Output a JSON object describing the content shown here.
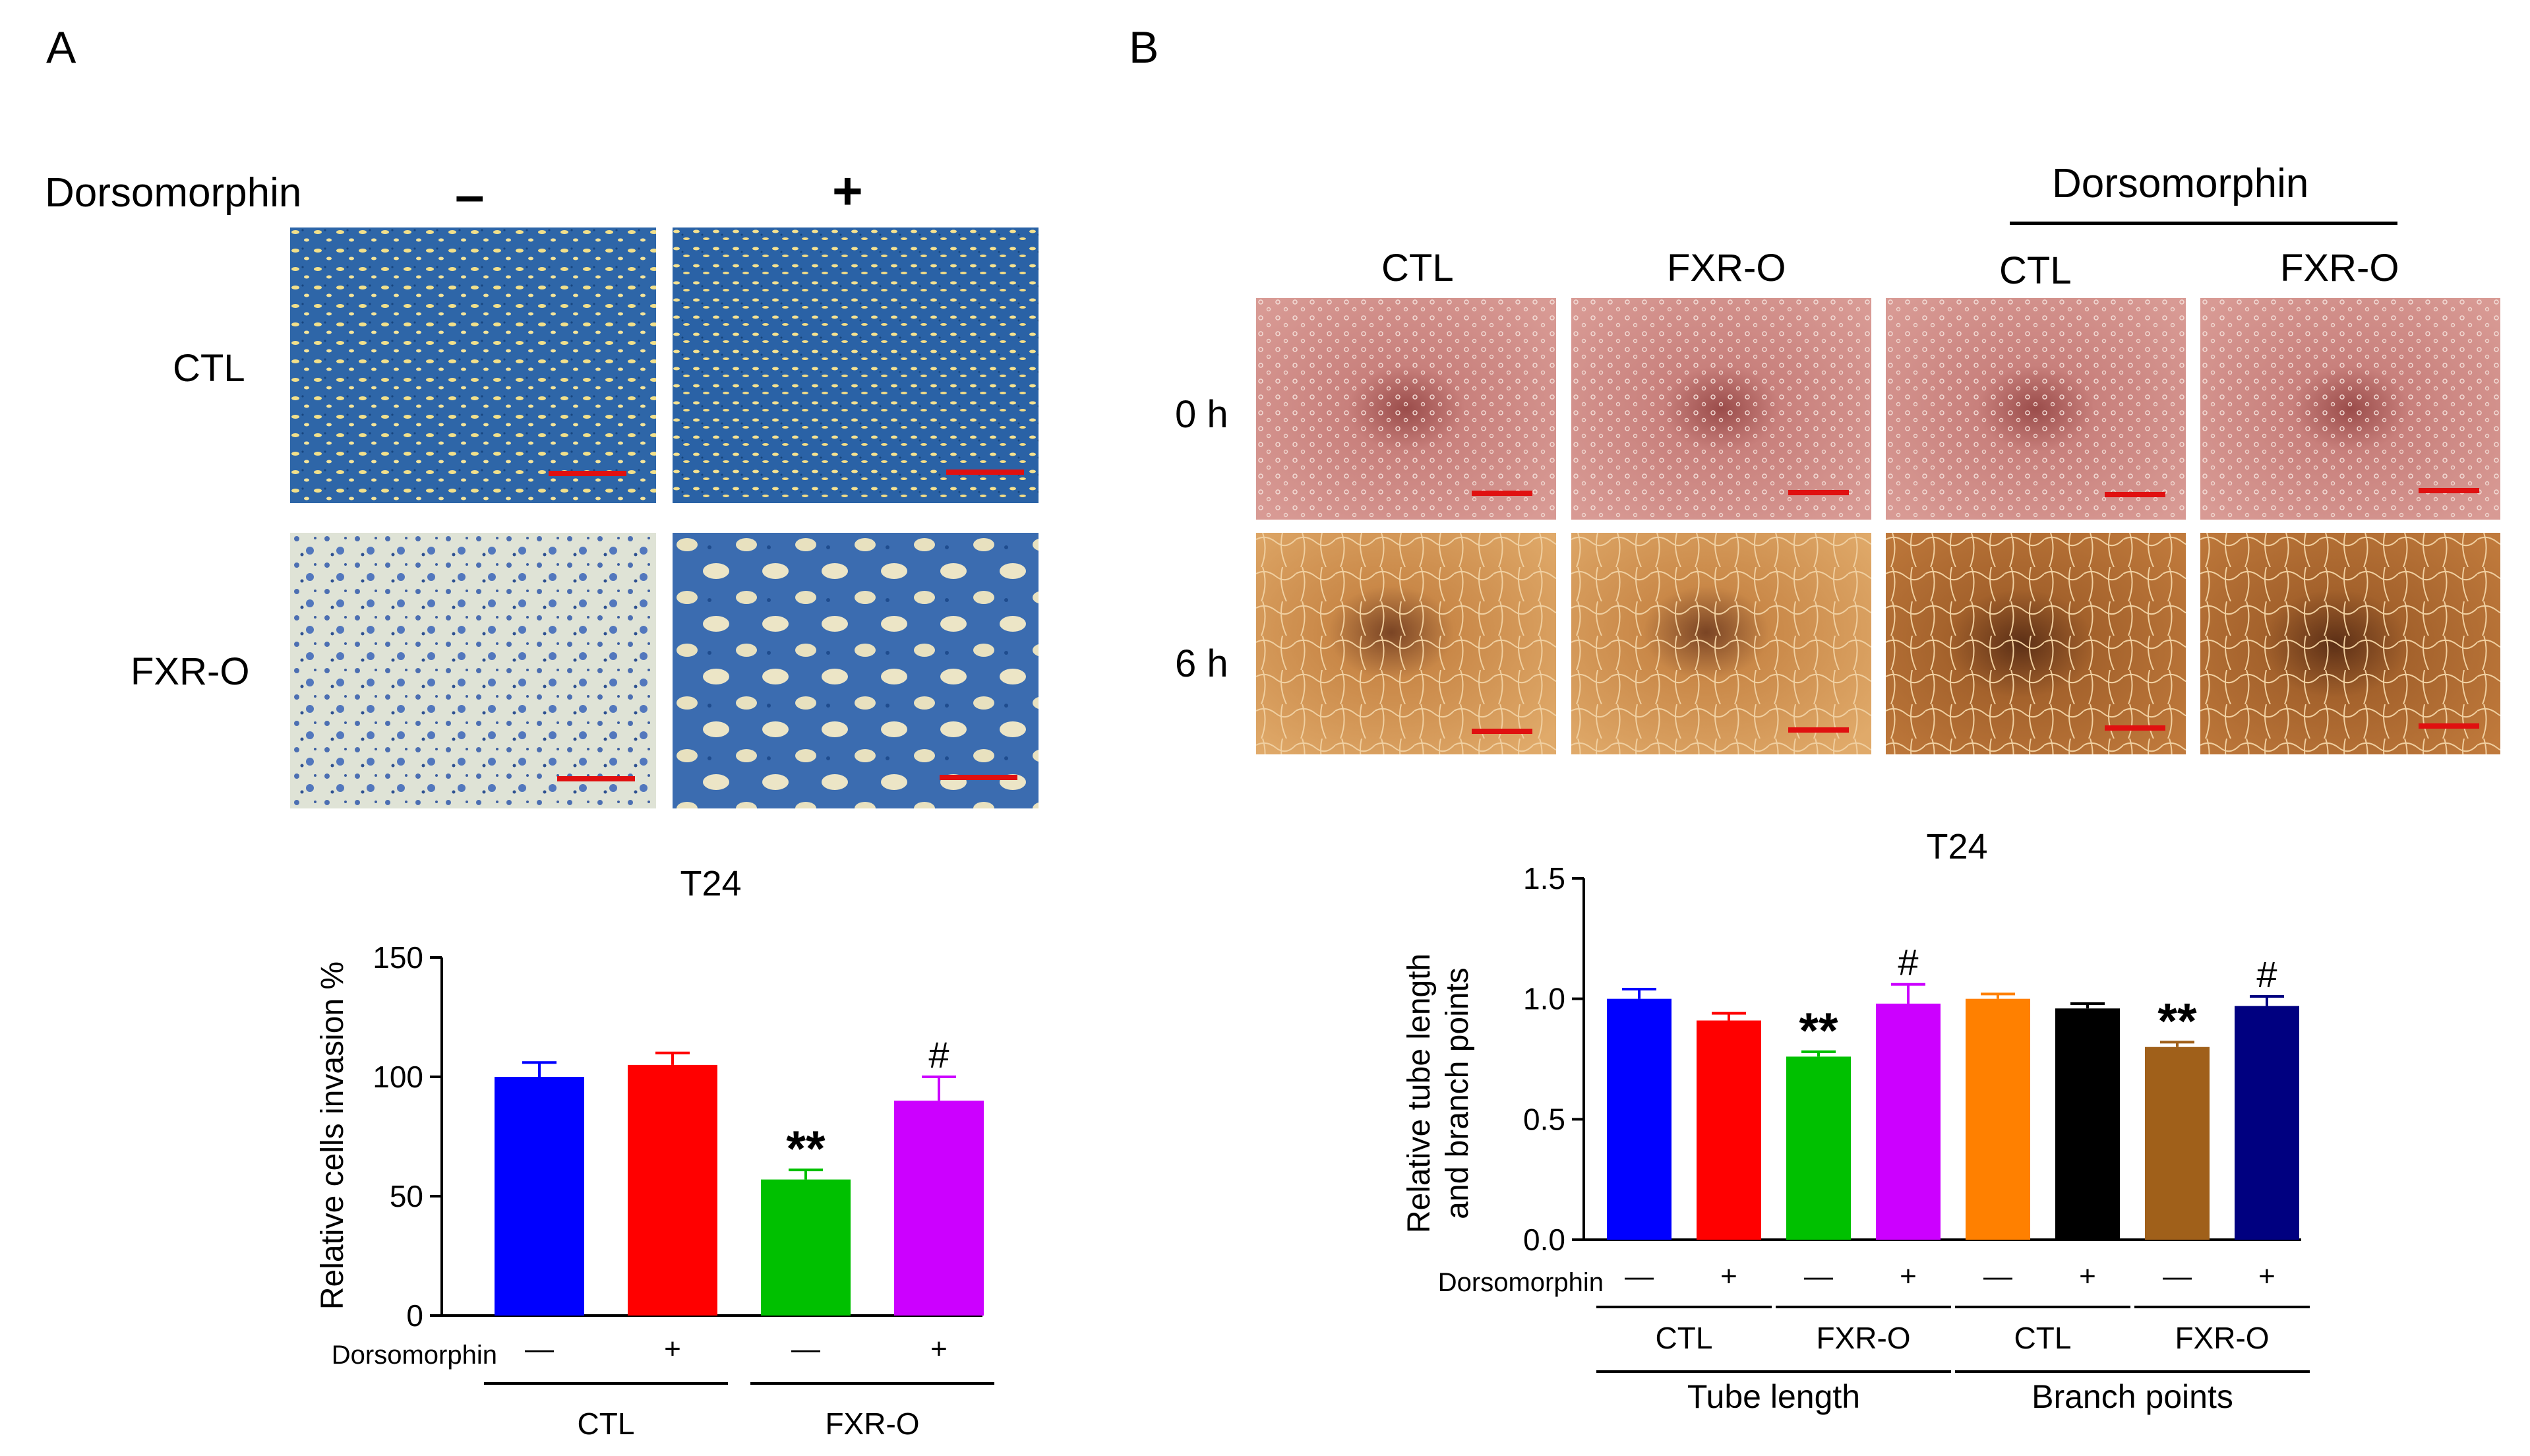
{
  "panel_labels": {
    "a": "A",
    "b": "B"
  },
  "panel_a": {
    "treatment_label": "Dorsomorphin",
    "col_labels": [
      "–",
      "+"
    ],
    "row_labels": [
      "CTL",
      "FXR-O"
    ]
  },
  "panel_b": {
    "treatment_label": "Dorsomorphin",
    "col_labels": [
      "CTL",
      "FXR-O",
      "CTL",
      "FXR-O"
    ],
    "row_labels": [
      "0 h",
      "6 h"
    ]
  },
  "chart_data": [
    {
      "type": "bar",
      "title": "T24",
      "ylabel": "Relative cells invasion %",
      "xlabel": "",
      "ylim": [
        0,
        150
      ],
      "yticks": [
        "0",
        "50",
        "100",
        "150"
      ],
      "categories": [
        "CTL –",
        "CTL +",
        "FXR-O –",
        "FXR-O +"
      ],
      "values": [
        100,
        105,
        57,
        90
      ],
      "errors": [
        6,
        5,
        4,
        10
      ],
      "colors": [
        "#0000ff",
        "#ff0000",
        "#00c000",
        "#cc00ff"
      ],
      "significance": [
        "",
        "",
        "**",
        "#"
      ],
      "dose_row_label": "Dorsomorphin",
      "dose_signs": [
        "—",
        "+",
        "—",
        "+"
      ],
      "groups": [
        "CTL",
        "FXR-O"
      ]
    },
    {
      "type": "bar",
      "title": "T24",
      "ylabel": "Relative tube length and branch points",
      "ylabel_lines": [
        "Relative tube length",
        "and branch points"
      ],
      "xlabel": "",
      "ylim": [
        0,
        1.5
      ],
      "yticks": [
        "0.0",
        "0.5",
        "1.0",
        "1.5"
      ],
      "categories": [
        "Tube length CTL –",
        "Tube length CTL +",
        "Tube length FXR-O –",
        "Tube length FXR-O +",
        "Branch points CTL –",
        "Branch points CTL +",
        "Branch points FXR-O –",
        "Branch points FXR-O +"
      ],
      "values": [
        1.0,
        0.91,
        0.76,
        0.98,
        1.0,
        0.96,
        0.8,
        0.97
      ],
      "errors": [
        0.04,
        0.03,
        0.02,
        0.08,
        0.02,
        0.02,
        0.02,
        0.04
      ],
      "colors": [
        "#0000ff",
        "#ff0000",
        "#00c000",
        "#cc00ff",
        "#ff8000",
        "#000000",
        "#a0601a",
        "#000080"
      ],
      "significance": [
        "",
        "",
        "**",
        "#",
        "",
        "",
        "**",
        "#"
      ],
      "dose_row_label": "Dorsomorphin",
      "dose_signs": [
        "—",
        "+",
        "—",
        "+",
        "—",
        "+",
        "—",
        "+"
      ],
      "groups": [
        "CTL",
        "FXR-O",
        "CTL",
        "FXR-O"
      ],
      "supergroups": [
        "Tube length",
        "Branch points"
      ]
    }
  ]
}
